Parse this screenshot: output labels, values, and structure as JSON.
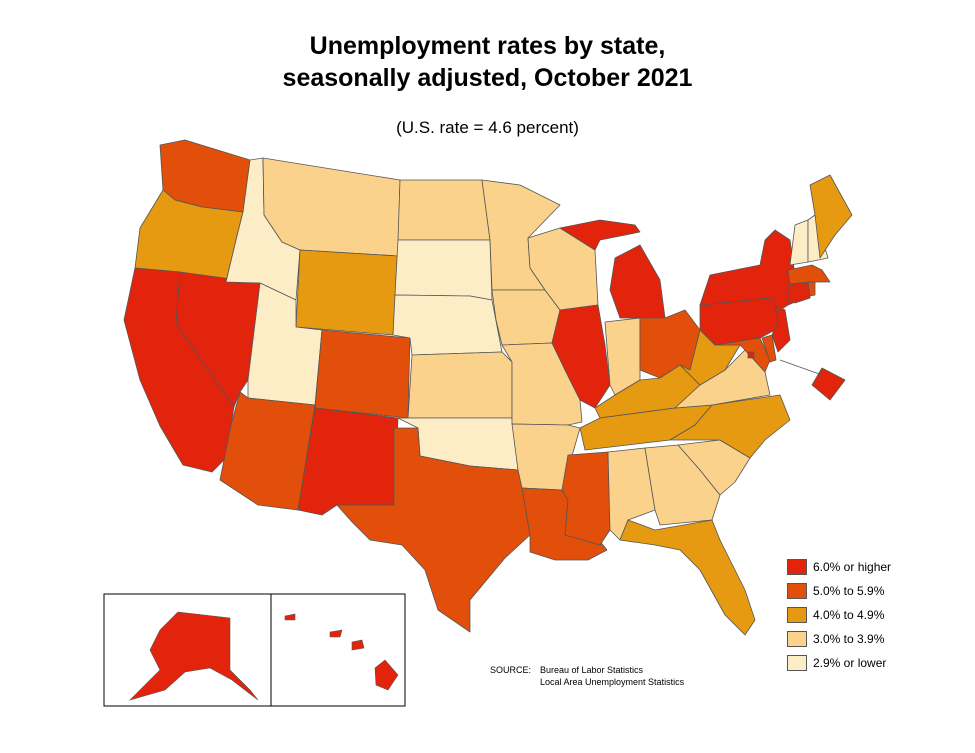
{
  "title_line1": "Unemployment rates by state,",
  "title_line2": "seasonally adjusted, October 2021",
  "subtitle": "(U.S. rate = 4.6 percent)",
  "legend": [
    {
      "label": "6.0% or higher",
      "color": "#e3240c"
    },
    {
      "label": "5.0% to 5.9%",
      "color": "#e24f0b"
    },
    {
      "label": "4.0% to 4.9%",
      "color": "#e59a11"
    },
    {
      "label": "3.0% to 3.9%",
      "color": "#fbd28c"
    },
    {
      "label": "2.9% or lower",
      "color": "#fdedc7"
    }
  ],
  "source": {
    "label": "SOURCE:",
    "line1": "Bureau of Labor Statistics",
    "line2": "Local Area Unemployment Statistics"
  },
  "states": [
    {
      "code": "WA",
      "category": 1
    },
    {
      "code": "OR",
      "category": 2
    },
    {
      "code": "CA",
      "category": 0
    },
    {
      "code": "NV",
      "category": 0
    },
    {
      "code": "ID",
      "category": 4
    },
    {
      "code": "MT",
      "category": 3
    },
    {
      "code": "WY",
      "category": 2
    },
    {
      "code": "UT",
      "category": 4
    },
    {
      "code": "AZ",
      "category": 1
    },
    {
      "code": "CO",
      "category": 1
    },
    {
      "code": "NM",
      "category": 0
    },
    {
      "code": "ND",
      "category": 3
    },
    {
      "code": "SD",
      "category": 4
    },
    {
      "code": "NE",
      "category": 4
    },
    {
      "code": "KS",
      "category": 3
    },
    {
      "code": "OK",
      "category": 4
    },
    {
      "code": "TX",
      "category": 1
    },
    {
      "code": "MN",
      "category": 3
    },
    {
      "code": "IA",
      "category": 3
    },
    {
      "code": "MO",
      "category": 3
    },
    {
      "code": "AR",
      "category": 3
    },
    {
      "code": "LA",
      "category": 1
    },
    {
      "code": "WI",
      "category": 3
    },
    {
      "code": "IL",
      "category": 0
    },
    {
      "code": "MI",
      "category": 0
    },
    {
      "code": "IN",
      "category": 3
    },
    {
      "code": "OH",
      "category": 1
    },
    {
      "code": "KY",
      "category": 2
    },
    {
      "code": "TN",
      "category": 2
    },
    {
      "code": "MS",
      "category": 1
    },
    {
      "code": "AL",
      "category": 3
    },
    {
      "code": "GA",
      "category": 3
    },
    {
      "code": "FL",
      "category": 2
    },
    {
      "code": "SC",
      "category": 3
    },
    {
      "code": "NC",
      "category": 2
    },
    {
      "code": "VA",
      "category": 3
    },
    {
      "code": "WV",
      "category": 2
    },
    {
      "code": "MD",
      "category": 1
    },
    {
      "code": "DE",
      "category": 1
    },
    {
      "code": "PA",
      "category": 0
    },
    {
      "code": "NJ",
      "category": 0
    },
    {
      "code": "NY",
      "category": 0
    },
    {
      "code": "CT",
      "category": 0
    },
    {
      "code": "RI",
      "category": 1
    },
    {
      "code": "MA",
      "category": 1
    },
    {
      "code": "VT",
      "category": 4
    },
    {
      "code": "NH",
      "category": 4
    },
    {
      "code": "ME",
      "category": 2
    },
    {
      "code": "DC",
      "category": 0
    },
    {
      "code": "AK",
      "category": 0
    },
    {
      "code": "HI",
      "category": 0
    }
  ]
}
